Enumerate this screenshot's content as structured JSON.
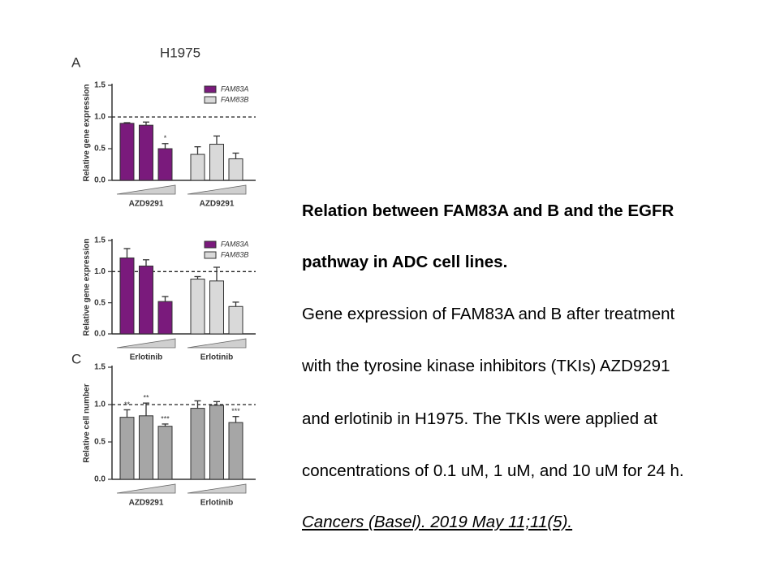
{
  "figure_title": "H1975",
  "panels": [
    {
      "type": "bar",
      "label": "A",
      "ylabel": "Relative gene expression",
      "ylim": [
        0,
        1.5
      ],
      "yticks": [
        {
          "value": 0,
          "label": "0.0"
        },
        0.5,
        {
          "value": 1,
          "label": "1.0"
        },
        1.5
      ],
      "refline": 1,
      "groups": [
        {
          "label": "AZD9291",
          "name": "FAM83A",
          "color": "#7a1a7c",
          "values": [
            0.9,
            0.87,
            0.5
          ],
          "errors": [
            0.01,
            0.05,
            0.08
          ],
          "annotations": [
            null,
            null,
            "*"
          ]
        },
        {
          "label": "AZD9291",
          "name": "FAM83B",
          "color": "#d9d9d9",
          "values": [
            0.41,
            0.57,
            0.34
          ],
          "errors": [
            0.12,
            0.13,
            0.09
          ],
          "annotations": [
            null,
            null,
            null
          ]
        }
      ]
    },
    {
      "type": "bar",
      "ylabel": "Relative gene expression",
      "ylim": [
        0,
        1.5
      ],
      "yticks": [
        {
          "value": 0,
          "label": "0.0"
        },
        0.5,
        {
          "value": 1,
          "label": "1.0"
        },
        1.5
      ],
      "refline": 1,
      "groups": [
        {
          "label": "Erlotinib",
          "name": "FAM83A",
          "color": "#7a1a7c",
          "values": [
            1.22,
            1.09,
            0.52
          ],
          "errors": [
            0.15,
            0.1,
            0.08
          ],
          "annotations": [
            null,
            null,
            null
          ]
        },
        {
          "label": "Erlotinib",
          "name": "FAM83B",
          "color": "#d9d9d9",
          "values": [
            0.88,
            0.85,
            0.44
          ],
          "errors": [
            0.04,
            0.22,
            0.07
          ],
          "annotations": [
            null,
            null,
            null
          ]
        }
      ]
    },
    {
      "type": "bar",
      "label": "C",
      "ylabel": "Relative cell number",
      "ylim": [
        0,
        1.5
      ],
      "yticks": [
        {
          "value": 0,
          "label": "0.0"
        },
        0.5,
        {
          "value": 1,
          "label": "1.0"
        },
        1.5
      ],
      "refline": 1,
      "groups": [
        {
          "label": "AZD9291",
          "color": "#a6a6a6",
          "values": [
            0.83,
            0.85,
            0.71
          ],
          "errors": [
            0.1,
            0.17,
            0.03
          ],
          "annotations": [
            "**",
            "**",
            "***"
          ]
        },
        {
          "label": "Erlotinib",
          "color": "#a6a6a6",
          "values": [
            0.95,
            0.99,
            0.76
          ],
          "errors": [
            0.1,
            0.05,
            0.08
          ],
          "annotations": [
            null,
            null,
            "***"
          ]
        }
      ]
    }
  ],
  "caption": {
    "title": [
      "Relation between FAM83A and B and the EGFR",
      "pathway in ADC cell lines."
    ],
    "body": [
      "Gene expression of FAM83A and B after treatment",
      "with the tyrosine kinase inhibitors (TKIs) AZD9291",
      "and erlotinib in H1975. The TKIs were applied at",
      "concentrations of 0.1 uM, 1 uM, and 10 uM for 24 h."
    ],
    "citation": "Cancers (Basel). 2019 May 11;11(5). "
  }
}
